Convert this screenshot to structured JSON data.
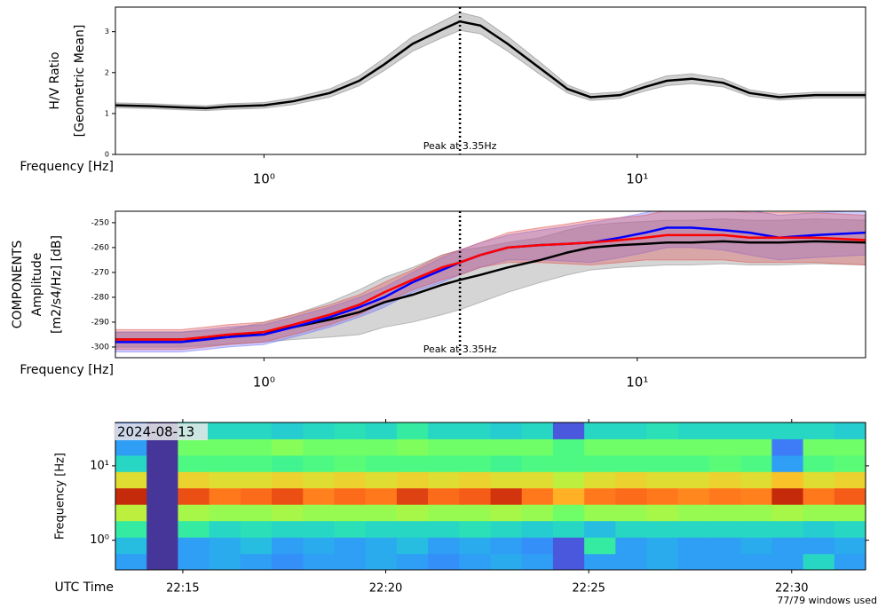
{
  "chart_data": [
    {
      "type": "line",
      "xscale": "log",
      "xlim": [
        0.4,
        40.9
      ],
      "ylim": [
        0,
        3.6
      ],
      "xticks": [
        {
          "value": 1,
          "label": "10⁰"
        },
        {
          "value": 10,
          "label": "10¹"
        }
      ],
      "yticks": [
        0,
        1,
        2,
        3
      ],
      "xlabel": "Frequency [Hz]",
      "ylabel": [
        "H/V Ratio",
        "[Geometric Mean]"
      ],
      "peak": {
        "x": 3.35,
        "label": "Peak at 3.35Hz"
      },
      "x": [
        0.4,
        0.5,
        0.6,
        0.7,
        0.8,
        1.0,
        1.2,
        1.5,
        1.8,
        2.1,
        2.5,
        3.0,
        3.35,
        3.8,
        4.5,
        5.5,
        6.5,
        7.5,
        9,
        10.5,
        12,
        14,
        17,
        20,
        24,
        30,
        40.9
      ],
      "series": [
        {
          "color": "#000000",
          "band_color": "#777777",
          "values": [
            1.2,
            1.18,
            1.15,
            1.13,
            1.17,
            1.2,
            1.3,
            1.5,
            1.8,
            2.2,
            2.7,
            3.05,
            3.25,
            3.15,
            2.7,
            2.1,
            1.6,
            1.4,
            1.45,
            1.65,
            1.8,
            1.85,
            1.75,
            1.5,
            1.4,
            1.45,
            1.45
          ],
          "spread": [
            0.06,
            0.06,
            0.06,
            0.06,
            0.07,
            0.07,
            0.08,
            0.1,
            0.12,
            0.15,
            0.18,
            0.2,
            0.22,
            0.2,
            0.18,
            0.15,
            0.1,
            0.08,
            0.08,
            0.1,
            0.12,
            0.12,
            0.1,
            0.08,
            0.07,
            0.07,
            0.07
          ]
        }
      ]
    },
    {
      "type": "line",
      "xscale": "log",
      "xlim": [
        0.4,
        40.9
      ],
      "ylim": [
        -304.3,
        -245.4
      ],
      "xticks": [
        {
          "value": 1,
          "label": "10⁰"
        },
        {
          "value": 10,
          "label": "10¹"
        }
      ],
      "yticks": [
        -300,
        -290,
        -280,
        -270,
        -260,
        -250
      ],
      "xlabel": "Frequency [Hz]",
      "ylabel": [
        "COMPONENTS",
        "Amplitude",
        "[m2/s4/Hz] [dB]"
      ],
      "peak": {
        "x": 3.35,
        "label": "Peak at 3.35Hz"
      },
      "x": [
        0.4,
        0.5,
        0.6,
        0.7,
        0.8,
        1.0,
        1.2,
        1.5,
        1.8,
        2.1,
        2.5,
        3.0,
        3.35,
        3.8,
        4.5,
        5.5,
        6.5,
        7.5,
        9,
        10.5,
        12,
        14,
        17,
        20,
        24,
        30,
        40.9
      ],
      "series": [
        {
          "color": "#000000",
          "band_color": "#888888",
          "values": [
            -297,
            -297,
            -297,
            -296.5,
            -296,
            -294,
            -292,
            -289,
            -286,
            -282,
            -279,
            -275,
            -273,
            -271,
            -268,
            -265,
            -262,
            -260,
            -259,
            -258.5,
            -258,
            -258,
            -257.5,
            -258,
            -258,
            -257.5,
            -258
          ],
          "spread": [
            3,
            3,
            3,
            3,
            3,
            4,
            5,
            7,
            9,
            10,
            11,
            12,
            12,
            11,
            10,
            9,
            9,
            9,
            9,
            9,
            9,
            9,
            9,
            9,
            9,
            9,
            9
          ]
        },
        {
          "color": "#0000ff",
          "band_color": "#6f6fff",
          "values": [
            -298,
            -298,
            -298,
            -297,
            -296,
            -295,
            -292,
            -288,
            -284,
            -280,
            -274,
            -269,
            -266,
            -263,
            -260,
            -259,
            -258.5,
            -258,
            -256,
            -254,
            -252,
            -252,
            -253,
            -254,
            -256,
            -255,
            -254
          ],
          "spread": [
            4,
            4,
            4,
            4,
            4,
            4,
            4,
            4,
            4,
            4,
            4,
            5,
            5,
            5,
            5,
            6,
            7,
            8,
            8,
            8,
            8,
            8,
            8,
            9,
            9,
            9,
            9
          ]
        },
        {
          "color": "#ff0000",
          "band_color": "#e05050",
          "values": [
            -297,
            -297,
            -297,
            -296,
            -295,
            -294,
            -291,
            -287,
            -283,
            -278,
            -273,
            -268,
            -266,
            -263,
            -260,
            -259,
            -258.5,
            -258,
            -257,
            -256,
            -255,
            -255,
            -255,
            -256,
            -256,
            -256,
            -257
          ],
          "spread": [
            4,
            4,
            4,
            4,
            4,
            4,
            4,
            4,
            4,
            4,
            4,
            5,
            5,
            5,
            6,
            7,
            8,
            9,
            9,
            9,
            10,
            10,
            10,
            10,
            10,
            10,
            10
          ]
        }
      ]
    },
    {
      "type": "heatmap",
      "yscale": "log",
      "colormap": "turbo",
      "zlim": [
        0,
        1
      ],
      "xlim": [
        13.34,
        31.82
      ],
      "ylim": [
        0.4,
        38.3
      ],
      "xticks": [
        {
          "value": 15,
          "label": "22:15"
        },
        {
          "value": 20,
          "label": "22:20"
        },
        {
          "value": 25,
          "label": "22:25"
        },
        {
          "value": 30,
          "label": "22:30"
        }
      ],
      "yticks": [
        {
          "value": 1,
          "label": "10⁰"
        },
        {
          "value": 10,
          "label": "10¹"
        }
      ],
      "xlabel": "UTC Time",
      "ylabel": [
        "Frequency [Hz]"
      ],
      "date": "2024-08-13",
      "x_edges": [
        13.34,
        14.11,
        14.88,
        15.65,
        16.42,
        17.19,
        17.96,
        18.73,
        19.5,
        20.27,
        21.04,
        21.81,
        22.58,
        23.35,
        24.12,
        24.89,
        25.66,
        26.43,
        27.2,
        27.97,
        28.74,
        29.51,
        30.28,
        31.05,
        31.82
      ],
      "y_edges": [
        0.4,
        0.66,
        1.1,
        1.83,
        3.04,
        5.05,
        8.38,
        13.9,
        23.1,
        38.3
      ],
      "z": [
        [
          0.2,
          0.05,
          0.2,
          0.22,
          0.2,
          0.18,
          0.2,
          0.2,
          0.22,
          0.2,
          0.18,
          0.2,
          0.22,
          0.2,
          0.1,
          0.2,
          0.2,
          0.22,
          0.2,
          0.2,
          0.2,
          0.2,
          0.3,
          0.2
        ],
        [
          0.25,
          0.05,
          0.2,
          0.22,
          0.25,
          0.2,
          0.22,
          0.2,
          0.22,
          0.25,
          0.2,
          0.22,
          0.2,
          0.18,
          0.1,
          0.35,
          0.2,
          0.22,
          0.2,
          0.2,
          0.22,
          0.2,
          0.2,
          0.22
        ],
        [
          0.35,
          0.05,
          0.35,
          0.3,
          0.32,
          0.3,
          0.3,
          0.32,
          0.3,
          0.3,
          0.3,
          0.32,
          0.3,
          0.28,
          0.3,
          0.25,
          0.3,
          0.3,
          0.3,
          0.3,
          0.3,
          0.3,
          0.28,
          0.3
        ],
        [
          0.55,
          0.05,
          0.52,
          0.5,
          0.5,
          0.52,
          0.5,
          0.5,
          0.5,
          0.52,
          0.5,
          0.5,
          0.52,
          0.5,
          0.45,
          0.5,
          0.5,
          0.52,
          0.5,
          0.5,
          0.5,
          0.52,
          0.5,
          0.5
        ],
        [
          0.88,
          0.05,
          0.82,
          0.76,
          0.78,
          0.82,
          0.75,
          0.78,
          0.76,
          0.84,
          0.78,
          0.8,
          0.86,
          0.76,
          0.68,
          0.76,
          0.78,
          0.76,
          0.74,
          0.76,
          0.75,
          0.88,
          0.76,
          0.8
        ],
        [
          0.6,
          0.05,
          0.62,
          0.6,
          0.6,
          0.62,
          0.6,
          0.62,
          0.6,
          0.62,
          0.6,
          0.62,
          0.6,
          0.6,
          0.55,
          0.6,
          0.62,
          0.6,
          0.6,
          0.62,
          0.6,
          0.65,
          0.6,
          0.62
        ],
        [
          0.3,
          0.05,
          0.4,
          0.4,
          0.4,
          0.38,
          0.4,
          0.42,
          0.4,
          0.4,
          0.4,
          0.4,
          0.38,
          0.4,
          0.4,
          0.4,
          0.4,
          0.4,
          0.4,
          0.42,
          0.4,
          0.2,
          0.4,
          0.42
        ],
        [
          0.2,
          0.05,
          0.45,
          0.45,
          0.45,
          0.48,
          0.45,
          0.45,
          0.45,
          0.47,
          0.45,
          0.45,
          0.45,
          0.45,
          0.4,
          0.45,
          0.45,
          0.45,
          0.45,
          0.45,
          0.45,
          0.15,
          0.45,
          0.45
        ],
        [
          0.15,
          0.05,
          0.3,
          0.3,
          0.3,
          0.28,
          0.3,
          0.32,
          0.3,
          0.35,
          0.3,
          0.3,
          0.28,
          0.3,
          0.1,
          0.3,
          0.3,
          0.32,
          0.3,
          0.3,
          0.3,
          0.3,
          0.3,
          0.28
        ]
      ]
    }
  ],
  "footer": "77/79 windows used"
}
